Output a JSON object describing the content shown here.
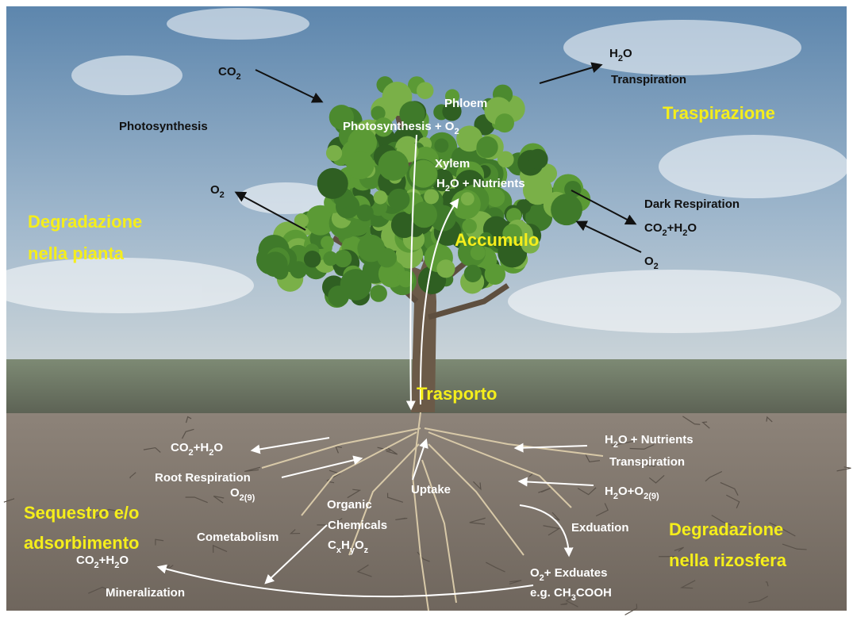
{
  "annotations": {
    "co2_in": [
      "CO",
      "2"
    ],
    "h2o_out": [
      "H",
      "2",
      "O"
    ],
    "transpiration_top": [
      "Transpiration"
    ],
    "phloem": [
      "Phloem"
    ],
    "photosynthesis_o2": [
      "Photosynthesis + O",
      "2"
    ],
    "photosynthesis": [
      "Photosynthesis"
    ],
    "xylem": [
      "Xylem"
    ],
    "h2o_nutrients_xylem": [
      "H",
      "2",
      "O + Nutrients"
    ],
    "o2_out": [
      "O",
      "2"
    ],
    "dark_respiration": [
      "Dark Respiration"
    ],
    "co2_h2o_dark": [
      "CO",
      "2",
      "+H",
      "2",
      "O"
    ],
    "o2_in": [
      "O",
      "2"
    ],
    "root_co2_h2o": [
      "CO",
      "2",
      "+H",
      "2",
      "O"
    ],
    "root_h2o_nutrients": [
      "H",
      "2",
      "O + Nutrients"
    ],
    "root_transpiration": [
      "Transpiration"
    ],
    "root_respiration": [
      "Root Respiration"
    ],
    "root_o2": [
      "O",
      "2(9)"
    ],
    "h2o_o2": [
      "H",
      "2",
      "O+O",
      "2(9)"
    ],
    "uptake": [
      "Uptake"
    ],
    "organic": [
      "Organic"
    ],
    "chemicals": [
      "Chemicals"
    ],
    "formula": [
      "C",
      "x",
      "H",
      "y",
      "O",
      "z"
    ],
    "exduation": [
      "Exduation"
    ],
    "cometabolism": [
      "Cometabolism"
    ],
    "mineral_co2_h2o": [
      "CO",
      "2",
      "+H",
      "2",
      "O"
    ],
    "mineralization": [
      "Mineralization"
    ],
    "o2_exduates": [
      "O",
      "2",
      "+ Exduates"
    ],
    "example": [
      "e.g. CH",
      "3",
      "COOH"
    ]
  },
  "processes": {
    "traspirazione": [
      "Traspirazione"
    ],
    "degradazione_pianta": [
      "Degradazione",
      "nella pianta"
    ],
    "accumulo": [
      "Accumulo"
    ],
    "trasporto": [
      "Trasporto"
    ],
    "sequestro": [
      "Sequestro e/o",
      "adsorbimento"
    ],
    "degradazione_rizosfera": [
      "Degradazione",
      "nella rizosfera"
    ]
  }
}
